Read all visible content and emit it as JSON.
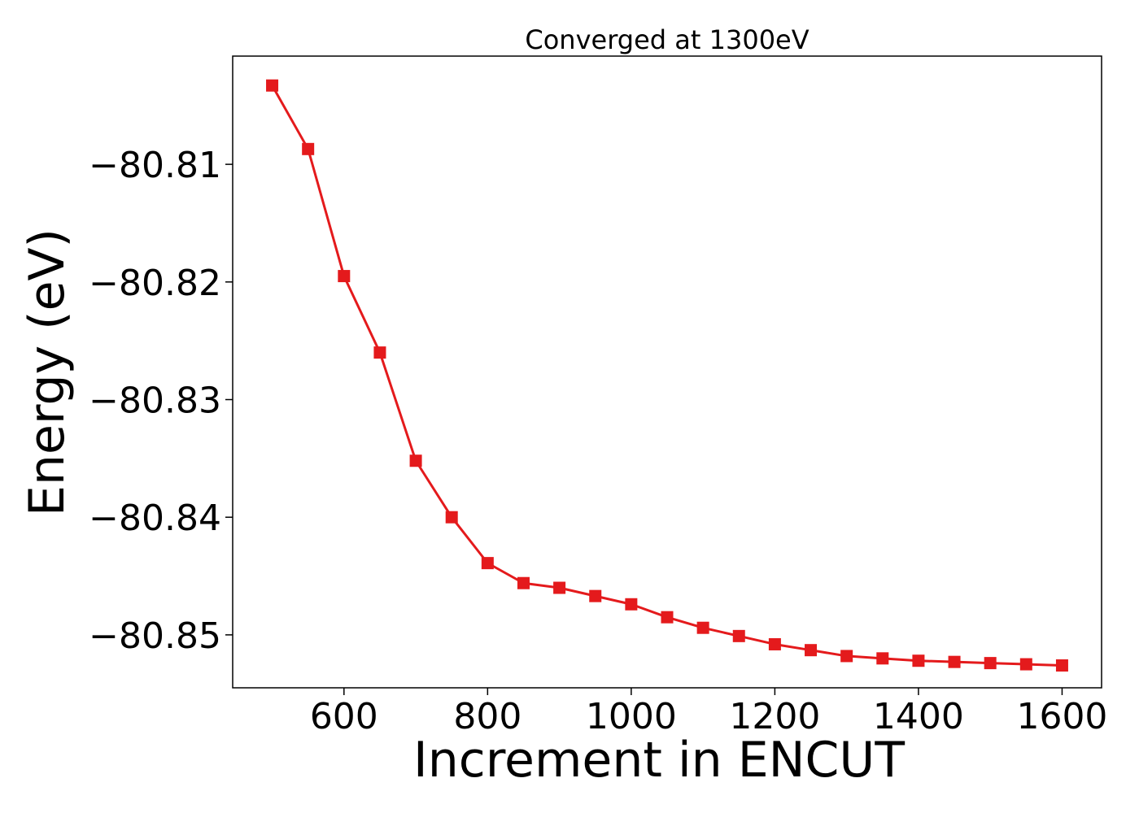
{
  "chart_data": {
    "type": "line",
    "title": "Converged at 1300eV",
    "xlabel": "Increment in ENCUT",
    "ylabel": "Energy (eV)",
    "xlim": [
      445,
      1655
    ],
    "ylim": [
      -80.8545,
      -80.8008
    ],
    "xticks": [
      600,
      800,
      1000,
      1200,
      1400,
      1600
    ],
    "yticks": [
      -80.81,
      -80.82,
      -80.83,
      -80.84,
      -80.85
    ],
    "xtick_labels": [
      "600",
      "800",
      "1000",
      "1200",
      "1400",
      "1600"
    ],
    "ytick_labels": [
      "−80.81",
      "−80.82",
      "−80.83",
      "−80.84",
      "−80.85"
    ],
    "grid": false,
    "series": [
      {
        "color": "#e41a1c",
        "marker": "square",
        "x": [
          500,
          550,
          600,
          650,
          700,
          750,
          800,
          850,
          900,
          950,
          1000,
          1050,
          1100,
          1150,
          1200,
          1250,
          1300,
          1350,
          1400,
          1450,
          1500,
          1550,
          1600
        ],
        "y": [
          -80.8033,
          -80.8087,
          -80.8195,
          -80.826,
          -80.8352,
          -80.84,
          -80.8439,
          -80.8456,
          -80.846,
          -80.8467,
          -80.8474,
          -80.8485,
          -80.8494,
          -80.8501,
          -80.8508,
          -80.8513,
          -80.8518,
          -80.852,
          -80.8522,
          -80.8523,
          -80.8524,
          -80.8525,
          -80.8526
        ]
      }
    ]
  }
}
